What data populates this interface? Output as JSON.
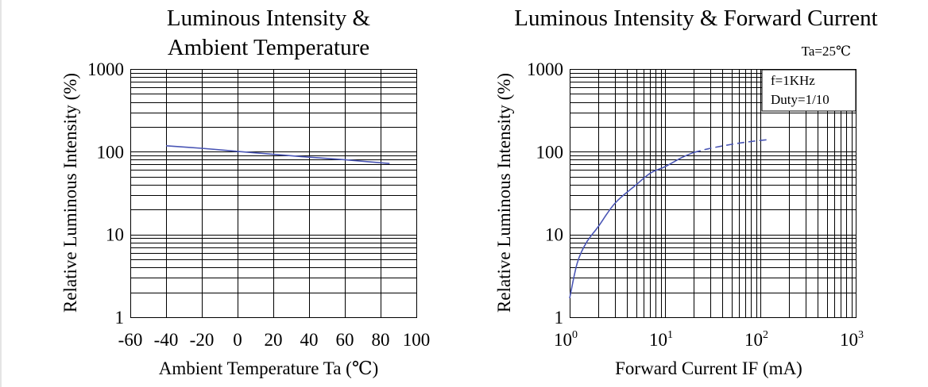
{
  "chart_data": [
    {
      "type": "line",
      "title_lines": [
        "Luminous Intensity &",
        "Ambient Temperature"
      ],
      "xlabel": "Ambient Temperature Ta (℃)",
      "ylabel": "Relative Luminous Intensity (%)",
      "x_scale": "linear",
      "y_scale": "log",
      "xlim": [
        -60,
        100
      ],
      "ylim": [
        1,
        1000
      ],
      "x_ticks": [
        "-60",
        "-40",
        "-20",
        "0",
        "20",
        "40",
        "60",
        "80",
        "100"
      ],
      "y_ticks": [
        "1",
        "10",
        "100",
        "1000"
      ],
      "grid": true,
      "series": [
        {
          "color": "#4a56b5",
          "style": "solid",
          "x": [
            -40,
            -20,
            0,
            20,
            40,
            60,
            85
          ],
          "y": [
            118,
            110,
            101,
            93,
            86,
            80,
            72
          ]
        }
      ]
    },
    {
      "type": "line",
      "title_lines": [
        "Luminous Intensity & Forward Current"
      ],
      "xlabel": "Forward Current IF (mA)",
      "ylabel": "Relative Luminous Intensity (%)",
      "x_scale": "log",
      "y_scale": "log",
      "xlim": [
        1,
        1000
      ],
      "ylim": [
        1,
        1000
      ],
      "x_ticks": [
        {
          "base": "10",
          "exp": "0"
        },
        {
          "base": "10",
          "exp": "1"
        },
        {
          "base": "10",
          "exp": "2"
        },
        {
          "base": "10",
          "exp": "3"
        }
      ],
      "y_ticks": [
        "1",
        "10",
        "100",
        "1000"
      ],
      "grid": true,
      "annotations": {
        "ta": "Ta=25℃",
        "freq": "f=1KHz",
        "duty": "Duty=1/10"
      },
      "series": [
        {
          "color": "#4a56b5",
          "style": "solid",
          "x": [
            1,
            1.2,
            1.5,
            2,
            3,
            5,
            7,
            10,
            15,
            20
          ],
          "y": [
            1.7,
            4.5,
            8,
            12.5,
            24,
            40,
            55,
            66,
            85,
            98
          ]
        },
        {
          "color": "#4a56b5",
          "style": "dashed",
          "x": [
            20,
            30,
            50,
            80,
            120
          ],
          "y": [
            98,
            110,
            123,
            133,
            140
          ]
        }
      ]
    }
  ]
}
